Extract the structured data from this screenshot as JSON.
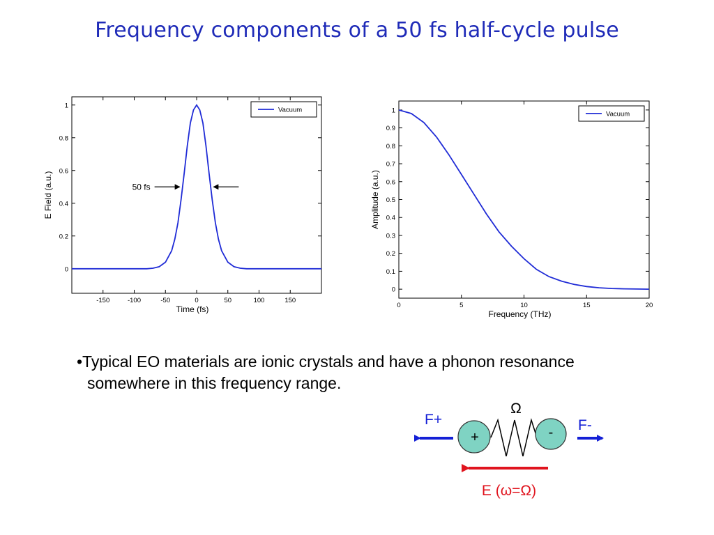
{
  "slide": {
    "title": "Frequency components of a 50 fs half-cycle pulse",
    "bullet_line1": "•Typical EO materials are ionic crystals and have a phonon resonance",
    "bullet_line2": "somewhere in this frequency range."
  },
  "diagram": {
    "omega_label": "Ω",
    "f_plus_label": "F+",
    "f_minus_label": "F-",
    "plus_sign": "+",
    "minus_sign": "-",
    "field_label": "E (ω=Ω)",
    "colors": {
      "blue_arrow": "#1420d6",
      "red_arrow": "#e0141e",
      "ion_fill": "#7fd3c3",
      "field_text": "#e0141e"
    }
  },
  "chart_data": [
    {
      "type": "line",
      "xlabel": "Time (fs)",
      "ylabel": "E Field (a.u.)",
      "xlim": [
        -200,
        200
      ],
      "ylim": [
        -0.15,
        1.05
      ],
      "xticks": [
        -150,
        -100,
        -50,
        0,
        50,
        100,
        150
      ],
      "yticks": [
        0,
        0.2,
        0.4,
        0.6,
        0.8,
        1
      ],
      "ytick_labels": [
        "0",
        "0.2",
        "0.4",
        "0.6",
        "0.8",
        "1"
      ],
      "legend": "top-right",
      "series": [
        {
          "name": "Vacuum",
          "color": "#1f2bd6",
          "x": [
            -200,
            -80,
            -70,
            -60,
            -50,
            -40,
            -35,
            -30,
            -25,
            -20,
            -15,
            -10,
            -5,
            0,
            5,
            10,
            15,
            20,
            25,
            30,
            35,
            40,
            50,
            60,
            70,
            80,
            200
          ],
          "y": [
            0,
            0,
            0.003,
            0.012,
            0.04,
            0.11,
            0.18,
            0.28,
            0.42,
            0.58,
            0.75,
            0.89,
            0.97,
            1,
            0.97,
            0.89,
            0.75,
            0.58,
            0.42,
            0.28,
            0.18,
            0.11,
            0.04,
            0.012,
            0.003,
            0,
            0
          ]
        }
      ],
      "annotation": {
        "text": "50 fs",
        "from": -25,
        "to": 25,
        "y": 0.5
      }
    },
    {
      "type": "line",
      "xlabel": "Frequency (THz)",
      "ylabel": "Amplitude  (a.u.)",
      "xlim": [
        0,
        20
      ],
      "ylim": [
        -0.05,
        1.05
      ],
      "xticks": [
        0,
        5,
        10,
        15,
        20
      ],
      "yticks": [
        0,
        0.1,
        0.2,
        0.3,
        0.4,
        0.5,
        0.6,
        0.7,
        0.8,
        0.9,
        1
      ],
      "ytick_labels": [
        "0",
        "0.1",
        "0.2",
        "0.3",
        "0.4",
        "0.5",
        "0.6",
        "0.7",
        "0.8",
        "0.9",
        "1"
      ],
      "legend": "top-right",
      "series": [
        {
          "name": "Vacuum",
          "color": "#1f2bd6",
          "x": [
            0,
            1,
            2,
            3,
            4,
            5,
            6,
            7,
            8,
            9,
            10,
            11,
            12,
            13,
            14,
            15,
            16,
            17,
            18,
            19,
            20
          ],
          "y": [
            1,
            0.98,
            0.93,
            0.85,
            0.75,
            0.64,
            0.53,
            0.42,
            0.32,
            0.24,
            0.17,
            0.11,
            0.07,
            0.045,
            0.027,
            0.015,
            0.008,
            0.004,
            0.002,
            0.001,
            0
          ]
        }
      ]
    }
  ]
}
